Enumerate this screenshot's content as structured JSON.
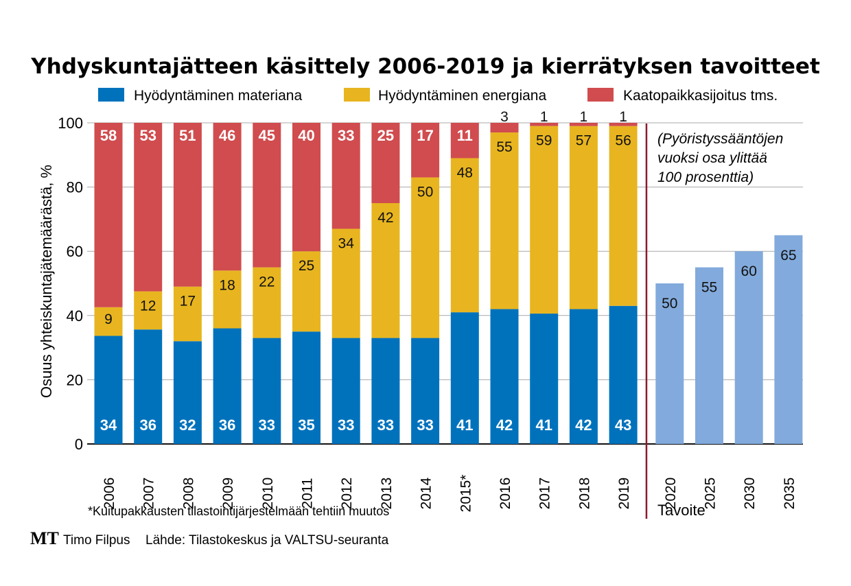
{
  "chart_data": {
    "type": "bar",
    "stacked": true,
    "title": "Yhdyskuntajätteen käsittely 2006-2019 ja kierrätyksen tavoitteet",
    "ylabel": "Osuus yhteiskuntajätemäärästä, %",
    "ylim": [
      0,
      100
    ],
    "yticks": [
      "0",
      "20",
      "40",
      "60",
      "80",
      "100"
    ],
    "grid": true,
    "legend_position": "top",
    "categories": [
      "2006",
      "2007",
      "2008",
      "2009",
      "2010",
      "2011",
      "2012",
      "2013",
      "2014",
      "2015*",
      "2016",
      "2017",
      "2018",
      "2019"
    ],
    "series": [
      {
        "name": "Hyödyntäminen materiana",
        "color": "#0072bc",
        "values": [
          34,
          36,
          32,
          36,
          33,
          35,
          33,
          33,
          33,
          41,
          42,
          41,
          42,
          43
        ]
      },
      {
        "name": "Hyödyntäminen energiana",
        "color": "#e8b520",
        "values": [
          9,
          12,
          17,
          18,
          22,
          25,
          34,
          42,
          50,
          48,
          55,
          59,
          57,
          56
        ]
      },
      {
        "name": "Kaatopaikkasijoitus tms.",
        "color": "#d04c4e",
        "values": [
          58,
          53,
          51,
          46,
          45,
          40,
          33,
          25,
          17,
          11,
          3,
          1,
          1,
          1
        ]
      }
    ],
    "targets": {
      "label": "Tavoite",
      "color": "#82aadc",
      "divider_color": "#8b1a2b",
      "categories": [
        "2020",
        "2025",
        "2030",
        "2035"
      ],
      "values": [
        50,
        55,
        60,
        65
      ]
    },
    "annotation": "(Pyöristyssääntöjen vuoksi osa ylittää 100 prosenttia)",
    "annotation_lines": [
      "(Pyöristyssääntöjen",
      "vuoksi osa ylittää",
      "100 prosenttia)"
    ],
    "footnote": "*Kuitupakkausten tilastointijärjestelmään tehtiin muutos"
  },
  "credits": {
    "logo": "MT",
    "author": "Timo Filpus",
    "source": "Lähde: Tilastokeskus ja VALTSU-seuranta"
  }
}
